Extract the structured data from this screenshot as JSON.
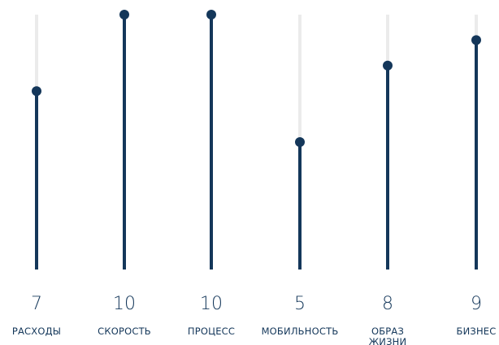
{
  "chart_data": {
    "type": "lollipop",
    "categories": [
      "РАСХОДЫ",
      "СКОРОСТЬ",
      "ПРОЦЕСС",
      "МОБИЛЬНОСТЬ",
      "ОБРАЗ ЖИЗНИ",
      "БИЗНЕС"
    ],
    "values": [
      7,
      10,
      10,
      5,
      8,
      9
    ],
    "value_labels": [
      "7",
      "10",
      "10",
      "5",
      "8",
      "9"
    ],
    "ylim": [
      0,
      10
    ],
    "grid": false,
    "title": "",
    "xlabel": "",
    "ylabel": ""
  },
  "colors": {
    "bar": "#14375a",
    "track": "#ebebeb",
    "text": "#14375a",
    "background": "#ffffff"
  }
}
